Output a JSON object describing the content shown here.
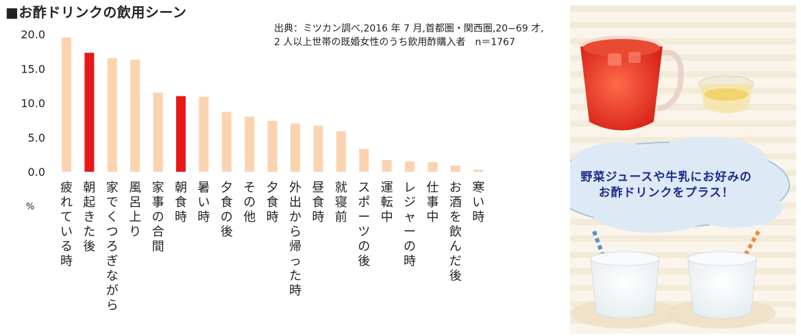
{
  "title": "■お酢ドリンクの飲用シーン",
  "source": {
    "line1": "出典：ミツカン調べ,2016 年 7 月,首都圏・関西圏,20−69 才,",
    "line2": "2 人以上世帯の既婚女性のうち飲用酢購入者　n＝1767"
  },
  "bubble": {
    "line1": "野菜ジュースや牛乳にお好みの",
    "line2": "お酢ドリンクをプラス！"
  },
  "colors": {
    "normal": "#fbd3b0",
    "highlight": "#e81818"
  },
  "chart_data": {
    "type": "bar",
    "ylabel": "%",
    "ylim": [
      0,
      20
    ],
    "yticks": [
      "0.0",
      "5.0",
      "10.0",
      "15.0",
      "20.0"
    ],
    "categories": [
      "疲れている時",
      "朝起きた後",
      "家でくつろぎながら",
      "風呂上り",
      "家事の合間",
      "朝食時",
      "暑い時",
      "夕食の後",
      "その他",
      "夕食時",
      "外出から帰った時",
      "昼食時",
      "就寝前",
      "スポーツの後",
      "運転中",
      "レジャーの時",
      "仕事中",
      "お酒を飲んだ後",
      "寒い時"
    ],
    "values": [
      19.5,
      17.3,
      16.5,
      16.3,
      11.5,
      11.0,
      10.9,
      8.7,
      8.0,
      7.4,
      7.0,
      6.7,
      5.9,
      3.3,
      1.7,
      1.5,
      1.4,
      0.9,
      0.3
    ],
    "highlight": [
      "朝起きた後",
      "朝食時"
    ]
  }
}
